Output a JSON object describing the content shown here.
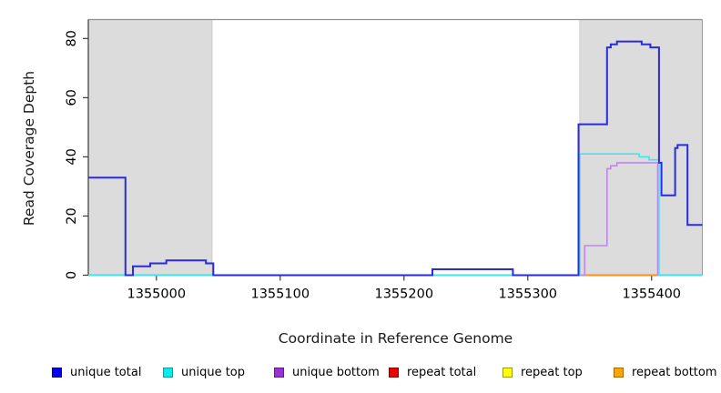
{
  "figure": {
    "xlabel": "Coordinate in Reference Genome",
    "ylabel": "Read Coverage Depth"
  },
  "chart_data": {
    "type": "line",
    "subtype": "step-coverage",
    "title": "",
    "xlabel": "Coordinate in Reference Genome",
    "ylabel": "Read Coverage Depth",
    "xlim": [
      1354945,
      1355441
    ],
    "ylim": [
      0,
      86.4
    ],
    "xticks": [
      1355000,
      1355100,
      1355200,
      1355300,
      1355400
    ],
    "yticks": [
      0,
      20,
      40,
      60,
      80
    ],
    "grid": false,
    "legend_position": "bottom",
    "shaded_regions": [
      {
        "x0": 1354945,
        "x1": 1355045,
        "color": "#DCDCDC",
        "border": "#C4C4C4"
      },
      {
        "x0": 1355342,
        "x1": 1355441,
        "color": "#DCDCDC",
        "border": "#C4C4C4"
      }
    ],
    "baseline_blend_color": "#86D57E",
    "series": [
      {
        "name": "unique total",
        "color": "#2B2BDE",
        "legend_fill": "#0000EE",
        "legend_border": "#00009B",
        "width": 2,
        "points": [
          [
            1354945,
            33
          ],
          [
            1354975,
            33
          ],
          [
            1354975,
            0
          ],
          [
            1354981,
            0
          ],
          [
            1354981,
            3
          ],
          [
            1354995,
            3
          ],
          [
            1354995,
            4
          ],
          [
            1355008,
            4
          ],
          [
            1355008,
            5
          ],
          [
            1355040,
            5
          ],
          [
            1355040,
            4
          ],
          [
            1355046,
            4
          ],
          [
            1355046,
            0
          ],
          [
            1355223,
            0
          ],
          [
            1355223,
            2
          ],
          [
            1355288,
            2
          ],
          [
            1355288,
            0
          ],
          [
            1355341,
            0
          ],
          [
            1355341,
            51
          ],
          [
            1355364,
            51
          ],
          [
            1355364,
            77
          ],
          [
            1355367,
            77
          ],
          [
            1355367,
            78
          ],
          [
            1355372,
            78
          ],
          [
            1355372,
            79
          ],
          [
            1355392,
            79
          ],
          [
            1355392,
            78
          ],
          [
            1355399,
            78
          ],
          [
            1355399,
            77
          ],
          [
            1355406,
            77
          ],
          [
            1355406,
            38
          ],
          [
            1355408,
            38
          ],
          [
            1355408,
            27
          ],
          [
            1355419,
            27
          ],
          [
            1355419,
            43
          ],
          [
            1355421,
            43
          ],
          [
            1355421,
            44
          ],
          [
            1355429,
            44
          ],
          [
            1355429,
            17
          ],
          [
            1355441,
            17
          ]
        ]
      },
      {
        "name": "unique top",
        "color": "#45E4EC",
        "legend_fill": "#00EEEE",
        "legend_border": "#0E9C9C",
        "width": 1.6,
        "points": [
          [
            1354945,
            0
          ],
          [
            1355342,
            0
          ],
          [
            1355342,
            41
          ],
          [
            1355390,
            41
          ],
          [
            1355390,
            40
          ],
          [
            1355398,
            40
          ],
          [
            1355398,
            39
          ],
          [
            1355406,
            39
          ],
          [
            1355406,
            0
          ],
          [
            1355441,
            0
          ]
        ]
      },
      {
        "name": "unique bottom",
        "color": "#BF86E9",
        "legend_fill": "#9B30D9",
        "legend_border": "#5E1B86",
        "width": 1.6,
        "points": [
          [
            1354945,
            0
          ],
          [
            1355346,
            0
          ],
          [
            1355346,
            10
          ],
          [
            1355364,
            10
          ],
          [
            1355364,
            36
          ],
          [
            1355367,
            36
          ],
          [
            1355367,
            37
          ],
          [
            1355372,
            37
          ],
          [
            1355372,
            38
          ],
          [
            1355405,
            38
          ],
          [
            1355405,
            0
          ],
          [
            1355441,
            0
          ]
        ]
      },
      {
        "name": "repeat total",
        "color": "#E03030",
        "legend_fill": "#EE0000",
        "legend_border": "#8B0000",
        "width": 1.2,
        "points": [
          [
            1354945,
            0
          ],
          [
            1355441,
            0
          ]
        ]
      },
      {
        "name": "repeat top",
        "color": "#EDED4C",
        "legend_fill": "#FFFF00",
        "legend_border": "#9C9C0E",
        "width": 1.2,
        "points": [
          [
            1354945,
            0
          ],
          [
            1355441,
            0
          ]
        ]
      },
      {
        "name": "repeat bottom",
        "color": "#FF9015",
        "legend_fill": "#FFA500",
        "legend_border": "#A86A00",
        "width": 2,
        "points": [
          [
            1355344,
            0
          ],
          [
            1355406,
            0
          ]
        ]
      }
    ]
  }
}
